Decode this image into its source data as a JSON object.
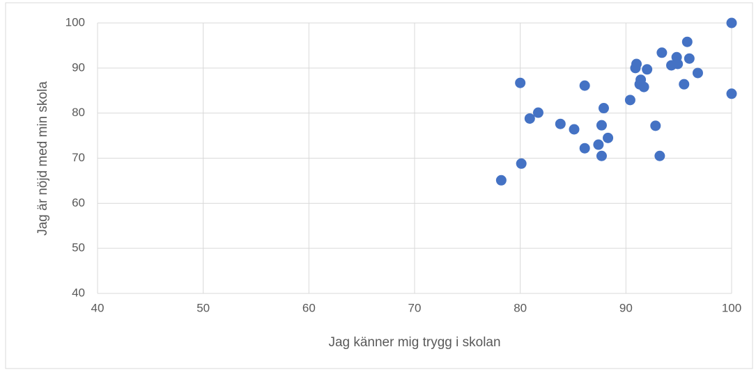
{
  "chart_data": {
    "type": "scatter",
    "xlabel": "Jag känner mig trygg i skolan",
    "ylabel": "Jag är nöjd med min skola",
    "x": [
      100,
      100,
      96.8,
      95.8,
      96.0,
      95.5,
      94.8,
      94.9,
      94.3,
      93.4,
      92.0,
      91.0,
      90.9,
      91.4,
      91.3,
      91.7,
      90.4,
      92.8,
      93.2,
      87.9,
      87.7,
      88.3,
      87.4,
      87.7,
      86.1,
      86.1,
      85.1,
      83.8,
      81.7,
      80.9,
      80.0,
      80.1,
      78.2
    ],
    "values": [
      100,
      84.3,
      88.9,
      95.8,
      92.1,
      86.4,
      92.4,
      90.9,
      90.6,
      93.4,
      89.7,
      90.9,
      90.0,
      87.4,
      86.4,
      85.8,
      82.9,
      77.2,
      70.5,
      81.1,
      77.3,
      74.5,
      73.0,
      70.5,
      86.1,
      72.2,
      76.4,
      77.6,
      80.1,
      78.8,
      86.7,
      68.8,
      65.1
    ],
    "color": "#4472c4",
    "xlim": [
      40,
      100
    ],
    "xticks": [
      40,
      50,
      60,
      70,
      80,
      90,
      100
    ],
    "ylim": [
      40,
      100
    ],
    "yticks": [
      40,
      50,
      60,
      70,
      80,
      90,
      100
    ],
    "grid": true
  }
}
